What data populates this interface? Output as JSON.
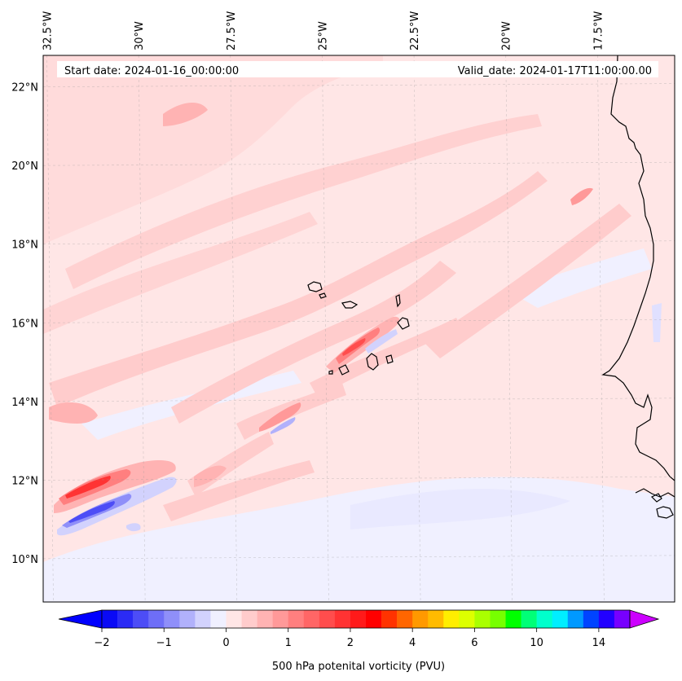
{
  "header": {
    "start_label": "Start date: 2024-01-16_00:00:00",
    "valid_label": "Valid_date: 2024-01-17T11:00:00.00"
  },
  "map": {
    "lon_labels": [
      "32.5°W",
      "30°W",
      "27.5°W",
      "25°W",
      "22.5°W",
      "20°W",
      "17.5°W"
    ],
    "lat_labels": [
      "22°N",
      "20°N",
      "18°N",
      "16°N",
      "14°N",
      "12°N",
      "10°N"
    ],
    "extent": {
      "lon_min": -32.6,
      "lon_max": -15.4,
      "lat_min": 8.9,
      "lat_max": 22.8
    },
    "background_color": "#ffe6e6",
    "coast_color": "#000000"
  },
  "colorbar": {
    "label": "500 hPa potenital vorticity (PVU)",
    "tick_labels": [
      "−2",
      "−1",
      "0",
      "1",
      "2",
      "4",
      "6",
      "10",
      "14"
    ],
    "tick_values": [
      -2,
      -1,
      0,
      1,
      2,
      4,
      6,
      10,
      14
    ],
    "colors": [
      "#0a0af5",
      "#2b2bf5",
      "#4d4df6",
      "#6e6ef7",
      "#8f8ff9",
      "#b1b1fb",
      "#d2d2fd",
      "#f0f0ff",
      "#ffe6e6",
      "#ffcccc",
      "#ffb3b3",
      "#ff9999",
      "#ff7f7f",
      "#ff6666",
      "#ff4d4d",
      "#ff3333",
      "#ff1a1a",
      "#ff0000",
      "#ff3300",
      "#ff6600",
      "#ff9900",
      "#ffbb00",
      "#ffee00",
      "#ddff00",
      "#aaff00",
      "#77ff00",
      "#00ff00",
      "#00ff77",
      "#00ffcc",
      "#00eeff",
      "#0099ff",
      "#0044ff",
      "#2200ff",
      "#7700ff"
    ],
    "extend_low_color": "#0000ff",
    "extend_high_color": "#cc00ff"
  }
}
